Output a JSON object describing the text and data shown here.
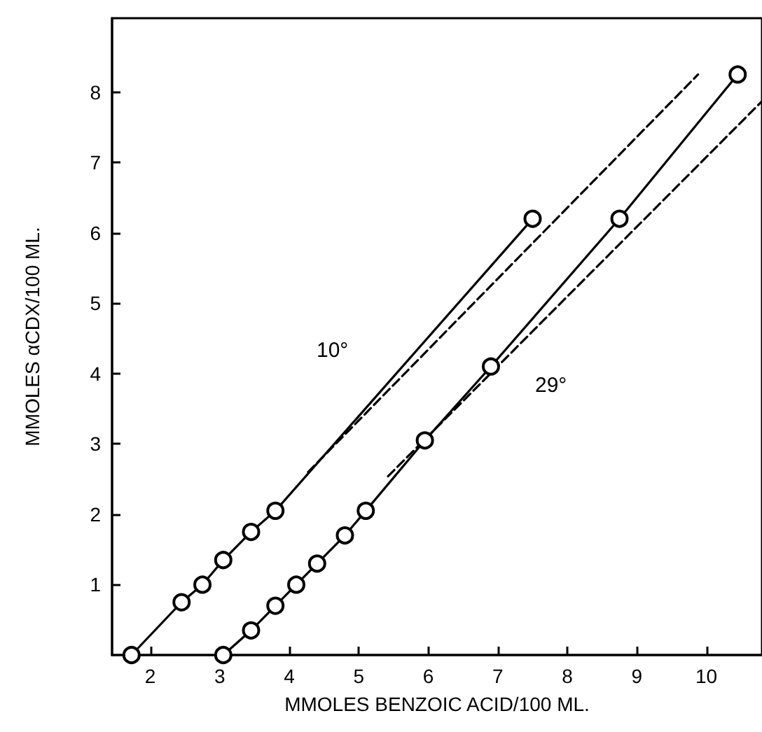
{
  "chart_data": {
    "type": "line",
    "xlabel": "MMOLES BENZOIC ACID/100 ML.",
    "ylabel": "MMOLES αCDX/100 ML.",
    "xlim": [
      1.45,
      10.8
    ],
    "ylim": [
      0,
      9.05
    ],
    "xticks": [
      2,
      3,
      4,
      5,
      6,
      7,
      8,
      9,
      10
    ],
    "yticks": [
      1,
      2,
      3,
      4,
      5,
      6,
      7,
      8
    ],
    "grid": false,
    "marker": "circle",
    "line_style": "solid",
    "series": [
      {
        "color": "#000000",
        "x": [
          1.73,
          2.45,
          2.75,
          3.05,
          3.45,
          3.8,
          7.5
        ],
        "values": [
          0,
          0.75,
          1.0,
          1.35,
          1.75,
          2.05,
          6.2
        ]
      },
      {
        "color": "#000000",
        "x": [
          3.05,
          3.45,
          3.8,
          4.1,
          4.4,
          4.8,
          5.1,
          5.95,
          6.9,
          8.75,
          10.45
        ],
        "values": [
          0,
          0.35,
          0.7,
          1.0,
          1.3,
          1.7,
          2.05,
          3.05,
          4.1,
          6.2,
          8.25
        ]
      },
      {
        "color": "#000000",
        "x": [
          4.27,
          9.88
        ],
        "values": [
          2.6,
          8.25
        ],
        "marker": "none",
        "line_style": "dashed"
      },
      {
        "color": "#000000",
        "x": [
          5.42,
          10.8
        ],
        "values": [
          2.54,
          7.87
        ],
        "marker": "none",
        "line_style": "dashed"
      }
    ],
    "annotations": [
      "10°",
      "29°"
    ]
  }
}
